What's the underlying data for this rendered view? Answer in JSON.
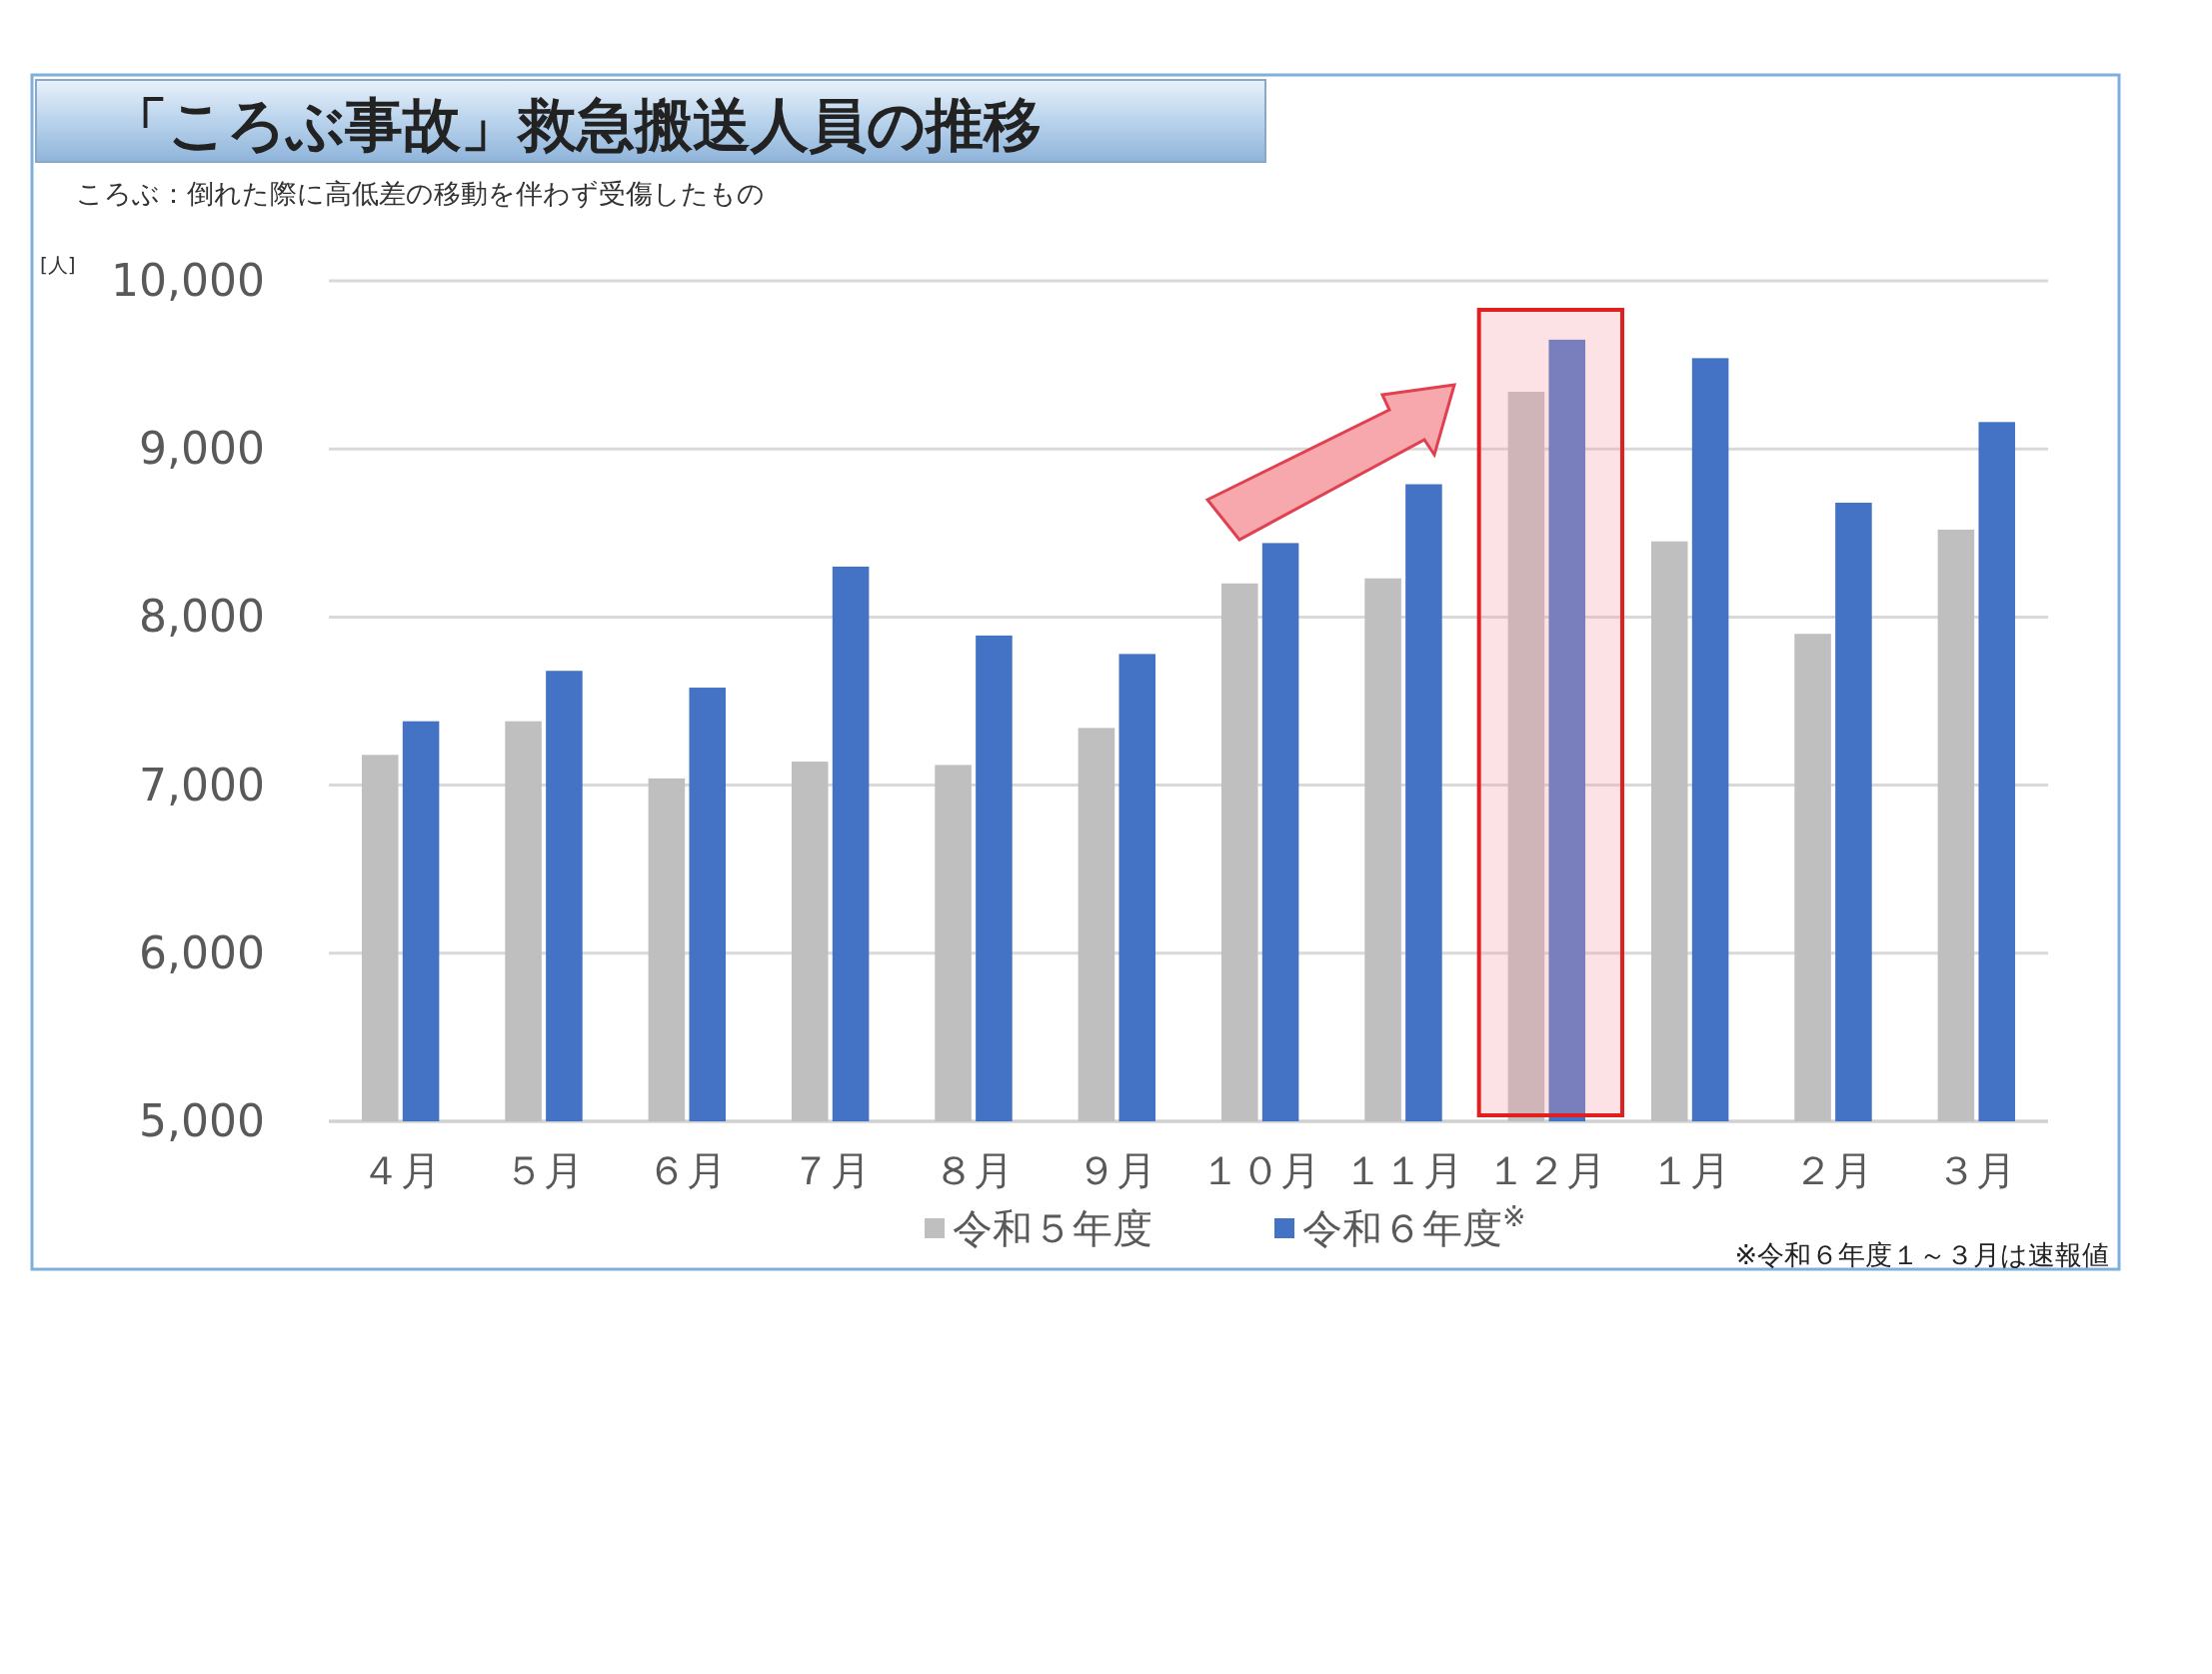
{
  "chart_data": {
    "type": "bar",
    "title": "「ころぶ事故」救急搬送人員の推移",
    "subtitle": "ころぶ：倒れた際に高低差の移動を伴わず受傷したもの",
    "ylabel": "[人]",
    "categories": [
      "４月",
      "５月",
      "６月",
      "７月",
      "８月",
      "９月",
      "１０月",
      "１１月",
      "１２月",
      "１月",
      "２月",
      "３月"
    ],
    "series": [
      {
        "name": "令和５年度",
        "color": "#bfbfbf",
        "values": [
          7180,
          7380,
          7040,
          7140,
          7120,
          7340,
          8200,
          8230,
          9340,
          8450,
          7900,
          8520
        ]
      },
      {
        "name": "令和６年度$^{※}$",
        "color": "#4472c4",
        "values": [
          7380,
          7680,
          7580,
          8300,
          7890,
          7780,
          8440,
          8790,
          9650,
          9540,
          8680,
          9160
        ]
      }
    ],
    "ylim": [
      5000,
      10000
    ],
    "yticks": [
      {
        "value": 5000,
        "label": "5,000"
      },
      {
        "value": 6000,
        "label": "6,000"
      },
      {
        "value": 7000,
        "label": "7,000"
      },
      {
        "value": 8000,
        "label": "8,000"
      },
      {
        "value": 9000,
        "label": "9,000"
      },
      {
        "value": 10000,
        "label": "10,000"
      }
    ],
    "grid": "y",
    "legend": "bottom",
    "annotations": [
      "※令和６年度１～３月は速報値"
    ]
  }
}
